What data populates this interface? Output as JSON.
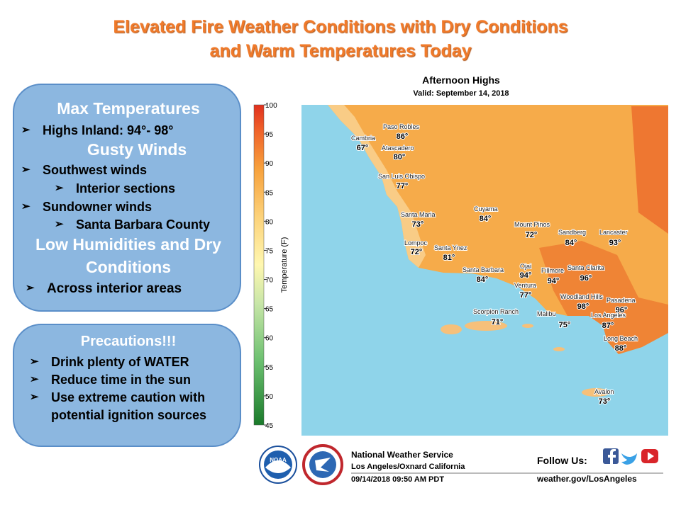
{
  "title": [
    "Elevated Fire Weather Conditions with Dry Conditions",
    "and Warm Temperatures Today"
  ],
  "conditions": {
    "max_heading": "Max Temperatures",
    "highs": "Highs Inland: 94°- 98°",
    "wind_heading": "Gusty Winds",
    "southwest": "Southwest winds",
    "interior": "Interior sections",
    "sundowner": "Sundowner winds",
    "sb_county": "Santa Barbara County",
    "humidity_heading": [
      "Low Humidities and Dry",
      "Conditions"
    ],
    "across": "Across interior areas"
  },
  "precautions": {
    "heading": "Precautions!!!",
    "items": [
      "Drink plenty of WATER",
      "Reduce time in the sun",
      "Use extreme caution with",
      "potential ignition sources"
    ]
  },
  "map": {
    "title": "Afternoon Highs",
    "subtitle": "Valid: September 14, 2018",
    "colorbar_label": "Temperature (F)",
    "colorbar_ticks": [
      100,
      95,
      90,
      85,
      80,
      75,
      70,
      65,
      60,
      55,
      50,
      45
    ],
    "cities": [
      {
        "name": "Paso Robles",
        "temp": "86°"
      },
      {
        "name": "Cambria",
        "temp": "67°"
      },
      {
        "name": "Atascadero",
        "temp": "80°"
      },
      {
        "name": "San Luis Obispo",
        "temp": "77°"
      },
      {
        "name": "Santa Maria",
        "temp": "73°"
      },
      {
        "name": "Cuyama",
        "temp": "84°"
      },
      {
        "name": "Mount Pinos",
        "temp": "72°"
      },
      {
        "name": "Sandberg",
        "temp": "84°"
      },
      {
        "name": "Lancaster",
        "temp": "93°"
      },
      {
        "name": "Lompoc",
        "temp": "72°"
      },
      {
        "name": "Santa Ynez",
        "temp": "81°"
      },
      {
        "name": "Santa Barbara",
        "temp": "84°"
      },
      {
        "name": "Ojai",
        "temp": "94°"
      },
      {
        "name": "Fillmore",
        "temp": "94°"
      },
      {
        "name": "Santa Clarita",
        "temp": "96°"
      },
      {
        "name": "Ventura",
        "temp": "77°"
      },
      {
        "name": "Woodland Hills",
        "temp": "98°"
      },
      {
        "name": "Pasadena",
        "temp": "96°"
      },
      {
        "name": "Scorpion Ranch",
        "temp": "71°"
      },
      {
        "name": "Malibu",
        "temp": "75°"
      },
      {
        "name": "Los Angeles",
        "temp": "87°"
      },
      {
        "name": "Long Beach",
        "temp": "88°"
      },
      {
        "name": "Avalon",
        "temp": "73°"
      }
    ]
  },
  "footer": {
    "logo": "NOAA",
    "office": "National Weather Service",
    "location": "Los Angeles/Oxnard California",
    "timestamp": "09/14/2018 09:50 AM PDT",
    "follow": "Follow Us:",
    "website": "weather.gov/LosAngeles"
  }
}
